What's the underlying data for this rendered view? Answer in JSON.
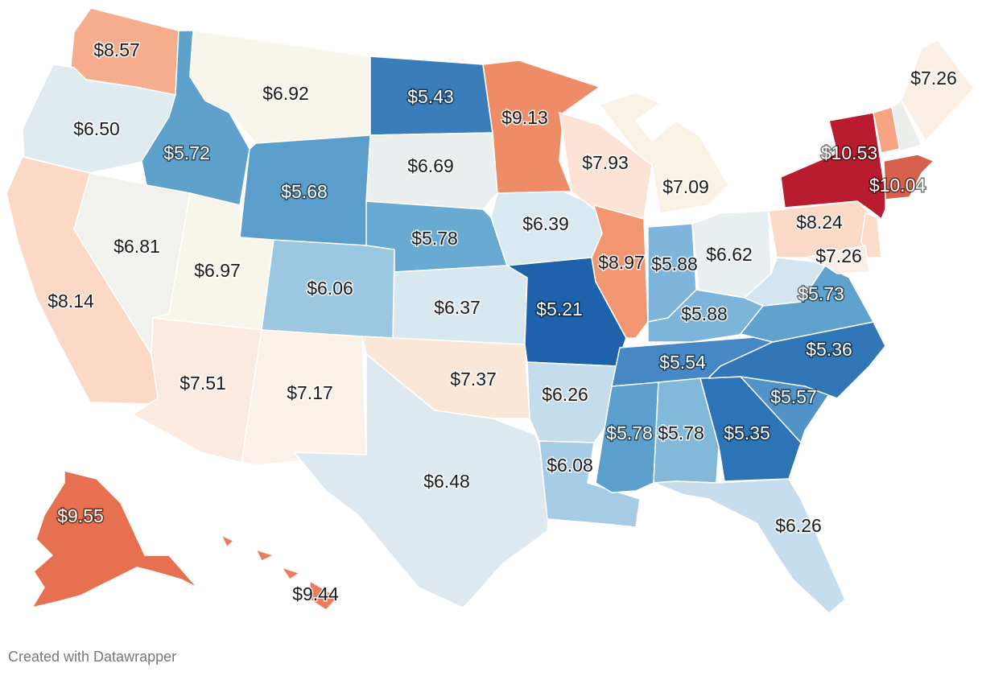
{
  "footer": "Created with Datawrapper",
  "legend_colors": {
    "low": "#2166ac",
    "mid": "#f7f7f7",
    "high": "#b2182b"
  },
  "states": [
    {
      "id": "WA",
      "value": "$8.57",
      "color": "#f5ad8d",
      "shape": "WA"
    },
    {
      "id": "OR",
      "value": "$6.50",
      "color": "#e0ebf0",
      "shape": "OR"
    },
    {
      "id": "CA",
      "value": "$8.14",
      "color": "#fcd8c6",
      "shape": "CA"
    },
    {
      "id": "NV",
      "value": "$6.81",
      "color": "#f1f2ed",
      "shape": "NV"
    },
    {
      "id": "ID",
      "value": "$5.72",
      "color": "#5ea2cc",
      "shape": "ID"
    },
    {
      "id": "MT",
      "value": "$6.92",
      "color": "#f8f6ea",
      "shape": "MT"
    },
    {
      "id": "WY",
      "value": "$5.68",
      "color": "#5b9dcb",
      "shape": "WY"
    },
    {
      "id": "UT",
      "value": "$6.97",
      "color": "#f8f5ea",
      "shape": "UT"
    },
    {
      "id": "AZ",
      "value": "$7.51",
      "color": "#fbeadf",
      "shape": "AZ"
    },
    {
      "id": "CO",
      "value": "$6.06",
      "color": "#9cc7e1",
      "shape": "CO"
    },
    {
      "id": "NM",
      "value": "$7.17",
      "color": "#faf2e8",
      "shape": "NM"
    },
    {
      "id": "ND",
      "value": "$5.43",
      "color": "#3a7dbb",
      "shape": "ND"
    },
    {
      "id": "SD",
      "value": "$6.69",
      "color": "#ebeeee",
      "shape": "SD"
    },
    {
      "id": "NE",
      "value": "$5.78",
      "color": "#69aad2",
      "shape": "NE"
    },
    {
      "id": "KS",
      "value": "$6.37",
      "color": "#d8e8f1",
      "shape": "KS"
    },
    {
      "id": "OK",
      "value": "$7.37",
      "color": "#fbe7d8",
      "shape": "OK"
    },
    {
      "id": "TX",
      "value": "$6.48",
      "color": "#dde9ef",
      "shape": "TX"
    },
    {
      "id": "MN",
      "value": "$9.13",
      "color": "#ef8c68",
      "shape": "MN"
    },
    {
      "id": "IA",
      "value": "$6.39",
      "color": "#d8e9f1",
      "shape": "IA"
    },
    {
      "id": "MO",
      "value": "$5.21",
      "color": "#1d62aa",
      "shape": "MO"
    },
    {
      "id": "AR",
      "value": "$6.26",
      "color": "#c5dcec",
      "shape": "AR"
    },
    {
      "id": "LA",
      "value": "$6.08",
      "color": "#a6cbe4",
      "shape": "LA"
    },
    {
      "id": "WI",
      "value": "$7.93",
      "color": "#fde3d5",
      "shape": "WI"
    },
    {
      "id": "IL",
      "value": "$8.97",
      "color": "#f19670",
      "shape": "IL"
    },
    {
      "id": "MI",
      "value": "$7.09",
      "color": "#f9f3e5",
      "shape": "MI"
    },
    {
      "id": "IN",
      "value": "$5.88",
      "color": "#7fb5da",
      "shape": "IN"
    },
    {
      "id": "OH",
      "value": "$6.62",
      "color": "#e9eff0",
      "shape": "OH"
    },
    {
      "id": "KY",
      "value": "$5.88",
      "color": "#7db4d9",
      "shape": "KY"
    },
    {
      "id": "TN",
      "value": "$5.54",
      "color": "#4688c5",
      "shape": "TN"
    },
    {
      "id": "MS",
      "value": "$5.78",
      "color": "#5b9fcc",
      "shape": "MS"
    },
    {
      "id": "AL",
      "value": "$5.78",
      "color": "#82b8da",
      "shape": "AL"
    },
    {
      "id": "GA",
      "value": "$5.35",
      "color": "#2d74b7",
      "shape": "GA"
    },
    {
      "id": "FL",
      "value": "$6.26",
      "color": "#c6ddee",
      "shape": "FL"
    },
    {
      "id": "SC",
      "value": "$5.57",
      "color": "#5293c8",
      "shape": "SC"
    },
    {
      "id": "NC",
      "value": "$5.36",
      "color": "#3176b7",
      "shape": "NC"
    },
    {
      "id": "VA",
      "value": "$5.73",
      "color": "#5ea2cd",
      "shape": "VA"
    },
    {
      "id": "WV",
      "value": "",
      "color": "#d2e5f1",
      "shape": "WV"
    },
    {
      "id": "PA",
      "value": "$8.24",
      "color": "#fcd9c7",
      "shape": "PA"
    },
    {
      "id": "NY",
      "value": "$10.53",
      "color": "#b91c2e",
      "shape": "NY"
    },
    {
      "id": "VT",
      "value": "",
      "color": "#f6a482",
      "shape": "VT"
    },
    {
      "id": "NH",
      "value": "",
      "color": "#eceeec",
      "shape": "NH"
    },
    {
      "id": "ME",
      "value": "$7.26",
      "color": "#fbefe5",
      "shape": "ME"
    },
    {
      "id": "MA",
      "value": "$10.04",
      "color": "#d5604c",
      "shape": "MA"
    },
    {
      "id": "NJ",
      "value": "",
      "color": "#fcdcca",
      "shape": "NJ"
    },
    {
      "id": "MD",
      "value": "$7.26",
      "color": "#fbeee4",
      "shape": "MD"
    },
    {
      "id": "AK",
      "value": "$9.55",
      "color": "#e6704f",
      "shape": "AK"
    },
    {
      "id": "HI",
      "value": "$9.44",
      "color": "#eb7d5c",
      "shape": "HI"
    }
  ]
}
